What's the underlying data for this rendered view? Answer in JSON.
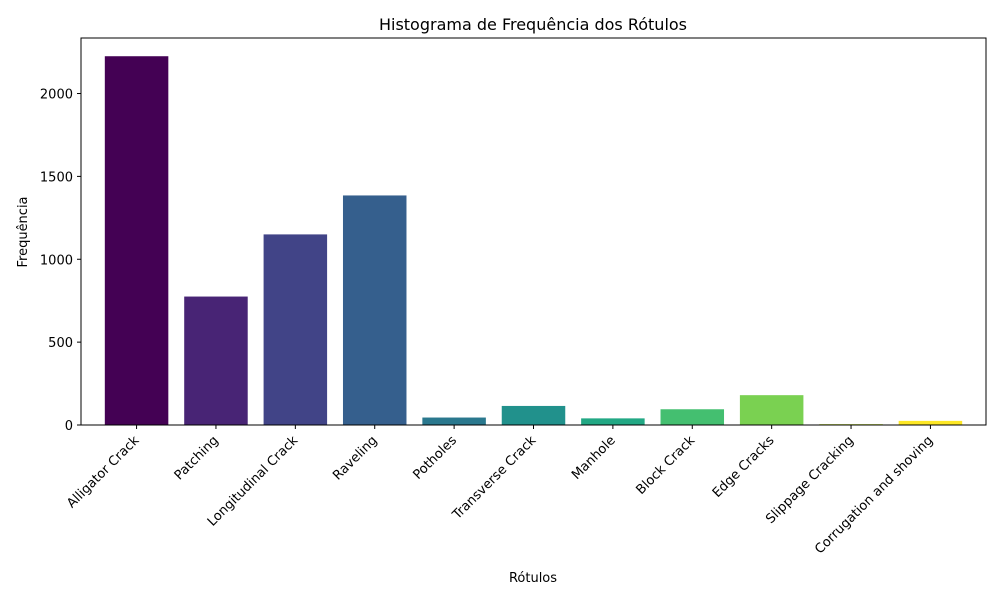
{
  "chart_data": {
    "type": "bar",
    "title": "Histograma de Frequência dos Rótulos",
    "xlabel": "Rótulos",
    "ylabel": "Frequência",
    "ylim": [
      0,
      2335
    ],
    "yticks": [
      0,
      500,
      1000,
      1500,
      2000
    ],
    "grid": false,
    "categories": [
      "Alligator Crack",
      "Patching",
      "Longitudinal Crack",
      "Raveling",
      "Potholes",
      "Transverse Crack",
      "Manhole",
      "Block Crack",
      "Edge Cracks",
      "Slippage Cracking",
      "Corrugation and shoving"
    ],
    "values": [
      2225,
      775,
      1150,
      1385,
      45,
      115,
      40,
      95,
      180,
      5,
      25
    ],
    "colors": [
      "#440154",
      "#482475",
      "#414487",
      "#355f8d",
      "#2a788e",
      "#21918c",
      "#22a884",
      "#44bf70",
      "#7ad151",
      "#bddf26",
      "#fde725"
    ]
  }
}
